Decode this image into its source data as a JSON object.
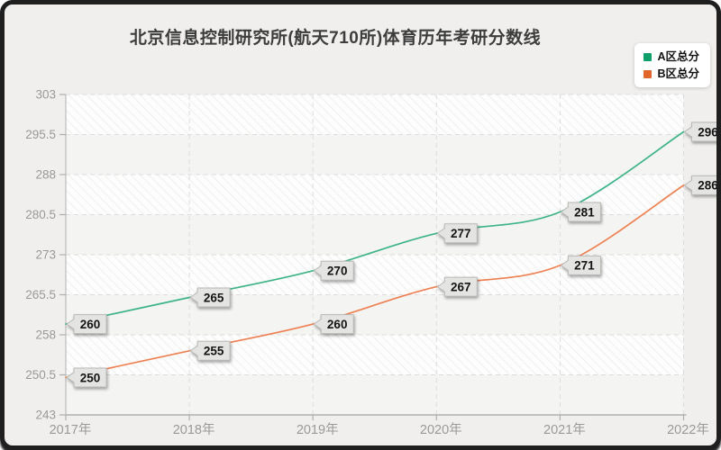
{
  "page": {
    "background_color": "#f0efed",
    "frame_border_color": "#1f1f1f"
  },
  "legend": {
    "items": [
      {
        "label": "A区总分",
        "swatch_color": "#0e9e6a"
      },
      {
        "label": "B区总分",
        "swatch_color": "#e0662a"
      }
    ]
  },
  "chart_data": {
    "type": "line",
    "title": "北京信息控制研究所(航天710所)体育历年考研分数线",
    "categories": [
      "2017年",
      "2018年",
      "2019年",
      "2020年",
      "2021年",
      "2022年"
    ],
    "series": [
      {
        "name": "A区总分",
        "line_color": "#3eb488",
        "swatch_color": "#0e9e6a",
        "values": [
          260,
          265,
          270,
          277,
          281,
          296
        ]
      },
      {
        "name": "B区总分",
        "line_color": "#ed8153",
        "swatch_color": "#e0662a",
        "values": [
          250,
          255,
          260,
          267,
          271,
          286
        ]
      }
    ],
    "ylim": [
      243,
      303
    ],
    "yticks": [
      243,
      250.5,
      258,
      265.5,
      273,
      280.5,
      288,
      295.5,
      303
    ],
    "grid": true,
    "grid_style": "dashed",
    "legend_position": "top-right",
    "smooth": true,
    "data_labels": true,
    "colors": {
      "axis_line": "#b0b0b0",
      "tick_label": "#999999",
      "gridline": "#dcdcdc",
      "band_hatch_stripe": "#e8e8e7",
      "band_plain": "#f4f4f2",
      "plot_base": "#fdfdfd",
      "callout_fill": "#e4e4e2",
      "callout_border": "#b9b9b7",
      "callout_text": "#141414",
      "title_color": "#3d3d3d"
    }
  }
}
